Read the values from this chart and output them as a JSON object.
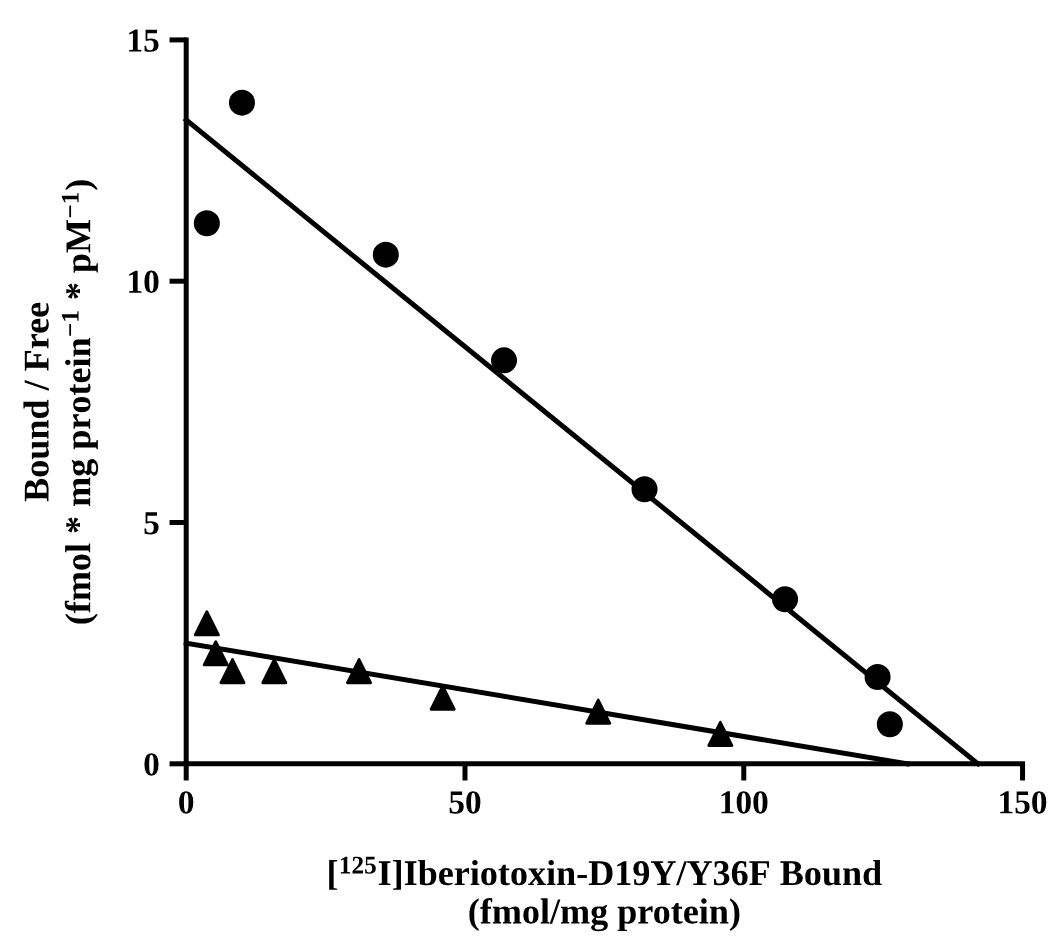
{
  "chart_data": {
    "type": "scatter",
    "xlabel": "[$^{125}$I]Iberiotoxin-D19Y/Y36F Bound\n(fmol/mg protein)",
    "ylabel": "Bound / Free\n(fmol * mg protein$^{−1}$ * pM$^{−1}$)",
    "xlim": [
      0,
      150
    ],
    "ylim": [
      0,
      15
    ],
    "xticks": [
      0,
      50,
      100,
      150
    ],
    "yticks": [
      0,
      5,
      10,
      15
    ],
    "grid": false,
    "legend": false,
    "series": [
      {
        "marker": "circle",
        "color": "#000000",
        "x": [
          3.7,
          10.0,
          35.8,
          57.0,
          82.2,
          107.4,
          124.0,
          126.2
        ],
        "values": [
          11.2,
          13.7,
          10.55,
          8.36,
          5.69,
          3.41,
          1.8,
          0.82
        ]
      },
      {
        "marker": "triangle",
        "color": "#000000",
        "x": [
          3.7,
          5.3,
          8.3,
          15.8,
          31.0,
          46.0,
          73.9,
          95.8
        ],
        "values": [
          2.91,
          2.29,
          1.92,
          1.92,
          1.92,
          1.37,
          1.08,
          0.62
        ]
      },
      {
        "type": "line",
        "marker": "none",
        "line_style": "solid",
        "color": "#000000",
        "x": [
          0,
          142.0
        ],
        "values": [
          13.34,
          0
        ]
      },
      {
        "type": "line",
        "marker": "none",
        "line_style": "solid",
        "color": "#000000",
        "x": [
          0,
          129.3
        ],
        "values": [
          2.5,
          0
        ]
      }
    ]
  }
}
